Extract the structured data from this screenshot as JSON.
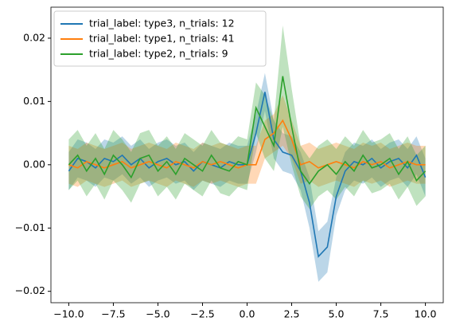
{
  "chart_data": {
    "type": "line",
    "legend": "upper left",
    "x": [
      -10,
      -9.5,
      -9,
      -8.5,
      -8,
      -7.5,
      -7,
      -6.5,
      -6,
      -5.5,
      -5,
      -4.5,
      -4,
      -3.5,
      -3,
      -2.5,
      -2,
      -1.5,
      -1,
      -0.5,
      0,
      0.5,
      1,
      1.5,
      2,
      2.5,
      3,
      3.5,
      4,
      4.5,
      5,
      5.5,
      6,
      6.5,
      7,
      7.5,
      8,
      8.5,
      9,
      9.5,
      10
    ],
    "series": [
      {
        "name": "trial_label: type3, n_trials: 12",
        "color": "#1f77b4",
        "values": [
          -0.001,
          0.001,
          0.0005,
          -0.0005,
          0.001,
          0.0005,
          0.0015,
          0,
          0.001,
          -0.0005,
          0.0005,
          0.001,
          0,
          0.0005,
          -0.001,
          0.0005,
          0,
          -0.0005,
          0.0005,
          0,
          0,
          0.005,
          0.0115,
          0.004,
          0.002,
          0.0015,
          -0.001,
          -0.006,
          -0.0145,
          -0.013,
          -0.005,
          -0.001,
          0.0005,
          0,
          0.001,
          -0.0005,
          0.0005,
          0.001,
          -0.0005,
          0.0015,
          -0.002
        ],
        "errors": [
          0.003,
          0.003,
          0.003,
          0.003,
          0.003,
          0.003,
          0.003,
          0.003,
          0.003,
          0.003,
          0.003,
          0.003,
          0.003,
          0.003,
          0.003,
          0.003,
          0.003,
          0.003,
          0.003,
          0.003,
          0.003,
          0.003,
          0.003,
          0.003,
          0.003,
          0.003,
          0.003,
          0.004,
          0.004,
          0.004,
          0.003,
          0.003,
          0.003,
          0.003,
          0.003,
          0.003,
          0.003,
          0.003,
          0.003,
          0.003,
          0.003
        ]
      },
      {
        "name": "trial_label: type1, n_trials: 41",
        "color": "#ff7f0e",
        "values": [
          0,
          -0.0005,
          0.0005,
          0,
          -0.0005,
          0,
          0.0005,
          -0.0005,
          0,
          0.0005,
          0,
          -0.0005,
          0.0005,
          0,
          -0.0005,
          0.0005,
          0,
          0.0005,
          0,
          -0.0005,
          0,
          0,
          0.004,
          0.005,
          0.007,
          0.004,
          0,
          0.0005,
          -0.0005,
          0,
          0.0005,
          0,
          -0.0005,
          0.0005,
          0,
          0.0005,
          -0.0005,
          0,
          0.0005,
          0,
          0
        ],
        "errors": [
          0.003,
          0.003,
          0.003,
          0.003,
          0.003,
          0.003,
          0.003,
          0.003,
          0.003,
          0.003,
          0.003,
          0.003,
          0.003,
          0.003,
          0.003,
          0.003,
          0.003,
          0.003,
          0.003,
          0.003,
          0.003,
          0.003,
          0.003,
          0.003,
          0.004,
          0.003,
          0.003,
          0.003,
          0.003,
          0.003,
          0.003,
          0.003,
          0.003,
          0.003,
          0.003,
          0.003,
          0.003,
          0.003,
          0.003,
          0.003,
          0.003
        ]
      },
      {
        "name": "trial_label: type2, n_trials: 9",
        "color": "#2ca02c",
        "values": [
          0,
          0.0015,
          -0.001,
          0.001,
          -0.0015,
          0.0015,
          0,
          -0.002,
          0.001,
          0.0015,
          -0.001,
          0.0005,
          -0.0015,
          0.001,
          0,
          -0.001,
          0.0015,
          -0.0005,
          -0.001,
          0.0005,
          0,
          0.009,
          0.006,
          0.003,
          0.014,
          0.006,
          -0.001,
          -0.003,
          -0.001,
          0,
          -0.0015,
          0.0005,
          -0.001,
          0.0015,
          -0.0005,
          0,
          0.001,
          -0.0015,
          0.0005,
          -0.0025,
          -0.001
        ],
        "errors": [
          0.004,
          0.004,
          0.004,
          0.004,
          0.004,
          0.004,
          0.004,
          0.004,
          0.004,
          0.004,
          0.004,
          0.004,
          0.004,
          0.004,
          0.004,
          0.004,
          0.004,
          0.004,
          0.004,
          0.004,
          0.004,
          0.004,
          0.005,
          0.004,
          0.008,
          0.006,
          0.004,
          0.004,
          0.004,
          0.004,
          0.004,
          0.004,
          0.004,
          0.004,
          0.004,
          0.004,
          0.004,
          0.004,
          0.004,
          0.004,
          0.004
        ]
      }
    ],
    "xlim": [
      -11,
      11
    ],
    "xticks": [
      {
        "value": -10,
        "label": "−10.0"
      },
      7.5,
      {
        "value": -7.5,
        "label": "−7.5"
      },
      {
        "value": -5,
        "label": "−5.0"
      },
      {
        "value": -2.5,
        "label": "−2.5"
      },
      {
        "value": 0,
        "label": "0.0"
      },
      2.5,
      {
        "value": 5,
        "label": "5.0"
      },
      {
        "value": 10,
        "label": "10.0"
      }
    ],
    "ylim": [
      -0.0218,
      0.0249
    ],
    "yticks": [
      {
        "value": -0.02,
        "label": "−0.02"
      },
      {
        "value": -0.01,
        "label": "−0.01"
      },
      {
        "value": 0,
        "label": "0.00"
      },
      0.01,
      0.02
    ]
  }
}
